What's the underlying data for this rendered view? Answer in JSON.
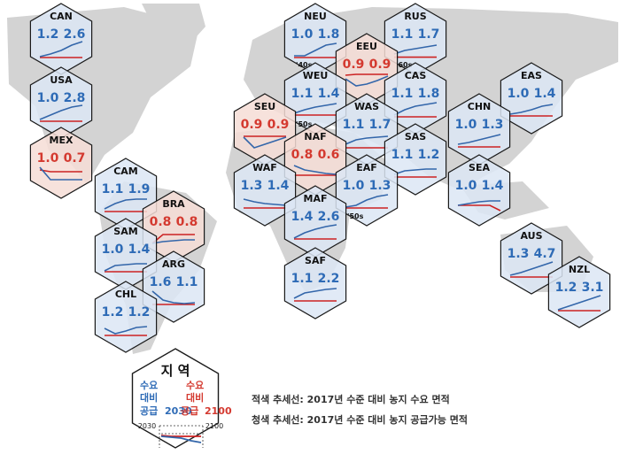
{
  "colors": {
    "map_land": "#d3d3d3",
    "hex_blue_fill": "#dce6f4",
    "hex_red_fill": "#f6ddd6",
    "blue_text": "#2e6bb6",
    "red_text": "#d43a30",
    "blue_line": "#3366aa",
    "red_line": "#cc2222",
    "outline": "#1a1a1a"
  },
  "regions": [
    {
      "code": "CAN",
      "a": "1.2",
      "b": "2.6",
      "tone": "blue",
      "trend_blue": [
        0.15,
        0.3,
        0.5,
        0.8,
        1.0
      ],
      "trend_red": [
        0.1,
        0.1,
        0.1,
        0.1,
        0.1
      ]
    },
    {
      "code": "USA",
      "a": "1.0",
      "b": "2.8",
      "tone": "blue",
      "trend_blue": [
        0.2,
        0.45,
        0.7,
        0.9,
        1.0
      ],
      "trend_red": [
        0.1,
        0.1,
        0.1,
        0.1,
        0.1
      ]
    },
    {
      "code": "MEX",
      "a": "1.0",
      "b": "0.7",
      "tone": "red",
      "trend_blue": [
        0.9,
        0.2,
        0.2,
        0.2,
        0.2
      ],
      "trend_red": [
        0.75,
        0.65,
        0.65,
        0.65,
        0.65
      ]
    },
    {
      "code": "CAM",
      "a": "1.1",
      "b": "1.9",
      "tone": "blue",
      "trend_blue": [
        0.3,
        0.6,
        0.8,
        0.85,
        0.85
      ],
      "trend_red": [
        0.15,
        0.15,
        0.15,
        0.15,
        0.15
      ]
    },
    {
      "code": "BRA",
      "a": "0.8",
      "b": "0.8",
      "tone": "red",
      "trend_blue": [
        0.2,
        0.3,
        0.35,
        0.4,
        0.4
      ],
      "trend_red": [
        0.2,
        0.7,
        0.7,
        0.7,
        0.7
      ]
    },
    {
      "code": "SAM",
      "a": "1.0",
      "b": "1.4",
      "tone": "blue",
      "trend_blue": [
        0.2,
        0.5,
        0.55,
        0.6,
        0.6
      ],
      "trend_red": [
        0.15,
        0.15,
        0.15,
        0.15,
        0.15
      ]
    },
    {
      "code": "ARG",
      "a": "1.6",
      "b": "1.1",
      "tone": "blue",
      "trend_blue": [
        0.9,
        0.4,
        0.25,
        0.2,
        0.25
      ],
      "trend_red": [
        0.15,
        0.15,
        0.15,
        0.15,
        0.15
      ]
    },
    {
      "code": "CHL",
      "a": "1.2",
      "b": "1.2",
      "tone": "blue",
      "trend_blue": [
        0.5,
        0.2,
        0.35,
        0.55,
        0.6
      ],
      "trend_red": [
        0.1,
        0.1,
        0.1,
        0.1,
        0.1
      ]
    },
    {
      "code": "NEU",
      "a": "1.0",
      "b": "1.8",
      "tone": "blue",
      "trend_blue": [
        0.2,
        0.2,
        0.5,
        0.8,
        0.9
      ],
      "trend_red": [
        0.1,
        0.1,
        0.1,
        0.1,
        0.1
      ],
      "note": "'40s"
    },
    {
      "code": "RUS",
      "a": "1.1",
      "b": "1.7",
      "tone": "blue",
      "trend_blue": [
        0.3,
        0.5,
        0.6,
        0.7,
        0.8
      ],
      "trend_red": [
        0.12,
        0.12,
        0.12,
        0.12,
        0.12
      ],
      "note": "'60s"
    },
    {
      "code": "EEU",
      "a": "0.9",
      "b": "0.9",
      "tone": "red",
      "trend_blue": [
        0.6,
        0.2,
        0.3,
        0.5,
        0.75
      ],
      "trend_red": [
        0.8,
        0.85,
        0.85,
        0.85,
        0.85
      ]
    },
    {
      "code": "WEU",
      "a": "1.1",
      "b": "1.4",
      "tone": "blue",
      "trend_blue": [
        0.3,
        0.5,
        0.65,
        0.75,
        0.85
      ],
      "trend_red": [
        0.2,
        0.2,
        0.2,
        0.2,
        0.2
      ],
      "note": "'50s"
    },
    {
      "code": "CAS",
      "a": "1.1",
      "b": "1.8",
      "tone": "blue",
      "trend_blue": [
        0.2,
        0.5,
        0.7,
        0.8,
        0.9
      ],
      "trend_red": [
        0.1,
        0.1,
        0.1,
        0.1,
        0.1
      ]
    },
    {
      "code": "EAS",
      "a": "1.0",
      "b": "1.4",
      "tone": "blue",
      "trend_blue": [
        0.25,
        0.35,
        0.5,
        0.7,
        0.8
      ],
      "trend_red": [
        0.15,
        0.15,
        0.15,
        0.15,
        0.15
      ]
    },
    {
      "code": "SEU",
      "a": "0.9",
      "b": "0.9",
      "tone": "red",
      "trend_blue": [
        0.7,
        0.1,
        0.3,
        0.5,
        0.7
      ],
      "trend_red": [
        0.75,
        0.75,
        0.75,
        0.75,
        0.75
      ]
    },
    {
      "code": "WAS",
      "a": "1.1",
      "b": "1.7",
      "tone": "blue",
      "trend_blue": [
        0.3,
        0.55,
        0.65,
        0.7,
        0.75
      ],
      "trend_red": [
        0.1,
        0.1,
        0.1,
        0.1,
        0.1
      ]
    },
    {
      "code": "CHN",
      "a": "1.0",
      "b": "1.3",
      "tone": "blue",
      "trend_blue": [
        0.3,
        0.4,
        0.55,
        0.7,
        0.85
      ],
      "trend_red": [
        0.15,
        0.15,
        0.15,
        0.15,
        0.15
      ]
    },
    {
      "code": "NAF",
      "a": "0.8",
      "b": "0.6",
      "tone": "red",
      "trend_blue": [
        0.8,
        0.55,
        0.45,
        0.35,
        0.3
      ],
      "trend_red": [
        0.25,
        0.25,
        0.25,
        0.25,
        0.25
      ]
    },
    {
      "code": "SAS",
      "a": "1.1",
      "b": "1.2",
      "tone": "blue",
      "trend_blue": [
        0.3,
        0.5,
        0.55,
        0.6,
        0.6
      ],
      "trend_red": [
        0.15,
        0.15,
        0.15,
        0.15,
        0.15
      ]
    },
    {
      "code": "WAF",
      "a": "1.3",
      "b": "1.4",
      "tone": "blue",
      "trend_blue": [
        0.65,
        0.5,
        0.4,
        0.35,
        0.3
      ],
      "trend_red": [
        0.15,
        0.15,
        0.15,
        0.15,
        0.15
      ]
    },
    {
      "code": "EAF",
      "a": "1.0",
      "b": "1.3",
      "tone": "blue",
      "trend_blue": [
        0.2,
        0.3,
        0.6,
        0.8,
        0.9
      ],
      "trend_red": [
        0.15,
        0.15,
        0.15,
        0.15,
        0.15
      ],
      "note": "'50s"
    },
    {
      "code": "SEA",
      "a": "1.0",
      "b": "1.4",
      "tone": "blue",
      "trend_blue": [
        0.3,
        0.4,
        0.5,
        0.55,
        0.55
      ],
      "trend_red": [
        0.3,
        0.3,
        0.3,
        0.3,
        0.0
      ]
    },
    {
      "code": "MAF",
      "a": "1.4",
      "b": "2.6",
      "tone": "blue",
      "trend_blue": [
        0.2,
        0.5,
        0.7,
        0.85,
        0.95
      ],
      "trend_red": [
        0.15,
        0.15,
        0.15,
        0.15,
        0.15
      ]
    },
    {
      "code": "SAF",
      "a": "1.1",
      "b": "2.2",
      "tone": "blue",
      "trend_blue": [
        0.3,
        0.6,
        0.7,
        0.8,
        0.85
      ],
      "trend_red": [
        0.15,
        0.15,
        0.15,
        0.15,
        0.15
      ]
    },
    {
      "code": "AUS",
      "a": "1.3",
      "b": "4.7",
      "tone": "blue",
      "trend_blue": [
        0.2,
        0.35,
        0.55,
        0.75,
        0.95
      ],
      "trend_red": [
        0.1,
        0.1,
        0.1,
        0.1,
        0.1
      ]
    },
    {
      "code": "NZL",
      "a": "1.2",
      "b": "3.1",
      "tone": "blue",
      "trend_blue": [
        0.15,
        0.35,
        0.55,
        0.75,
        0.95
      ],
      "trend_red": [
        0.1,
        0.1,
        0.1,
        0.1,
        0.1
      ]
    }
  ],
  "legend": {
    "title": "지 역",
    "blue_label_1": "수요",
    "blue_label_2": "대비",
    "blue_label_3": "공급",
    "blue_year": "2030",
    "red_label_1": "수요",
    "red_label_2": "대비",
    "red_label_3": "공급",
    "red_year": "2100",
    "axis_start": "2030",
    "axis_end": "2100",
    "trend_blue": [
      0.55,
      0.5,
      0.45,
      0.3,
      0.2
    ],
    "trend_red": [
      0.6,
      0.55,
      0.55,
      0.55,
      0.55
    ]
  },
  "notes": {
    "red_line": "적색 추세선: 2017년 수준 대비 농지 수요 면적",
    "blue_line": "청색 추세선: 2017년 수준 대비 농지 공급가능 면적"
  }
}
